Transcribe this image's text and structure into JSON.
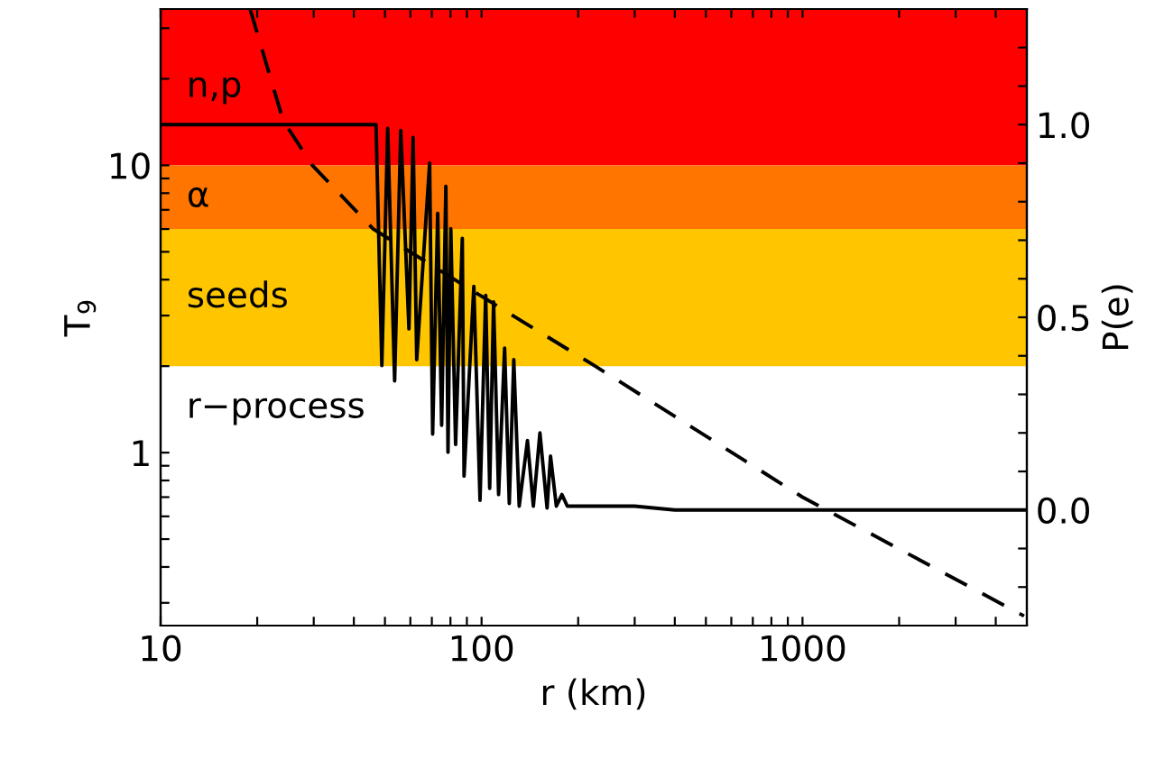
{
  "chart_data": {
    "type": "line",
    "xlabel": "r (km)",
    "ylabel": "T$_{9}$",
    "y2label": "P(e)",
    "log": "xy",
    "xlim": [
      10,
      5000
    ],
    "xticks": [
      10,
      {
        "value": 20,
        "label": null
      },
      {
        "value": 30,
        "label": null
      },
      {
        "value": 40,
        "label": null
      },
      {
        "value": 50,
        "label": null
      },
      {
        "value": 60,
        "label": null
      },
      {
        "value": 70,
        "label": null
      },
      {
        "value": 80,
        "label": null
      },
      {
        "value": 90,
        "label": null
      },
      100,
      {
        "value": 200,
        "label": null
      },
      {
        "value": 300,
        "label": null
      },
      {
        "value": 400,
        "label": null
      },
      {
        "value": 500,
        "label": null
      },
      {
        "value": 600,
        "label": null
      },
      {
        "value": 700,
        "label": null
      },
      {
        "value": 800,
        "label": null
      },
      {
        "value": 900,
        "label": null
      },
      1000,
      {
        "value": 2000,
        "label": null
      },
      {
        "value": 3000,
        "label": null
      },
      {
        "value": 4000,
        "label": null
      }
    ],
    "ylim": [
      0.25,
      35
    ],
    "yticks": [
      {
        "value": 0.3,
        "label": null
      },
      {
        "value": 0.4,
        "label": null
      },
      {
        "value": 0.5,
        "label": null
      },
      {
        "value": 0.6,
        "label": null
      },
      {
        "value": 0.7,
        "label": null
      },
      {
        "value": 0.8,
        "label": null
      },
      {
        "value": 0.9,
        "label": null
      },
      1,
      {
        "value": 2,
        "label": null
      },
      {
        "value": 3,
        "label": null
      },
      {
        "value": 4,
        "label": null
      },
      {
        "value": 5,
        "label": null
      },
      {
        "value": 6,
        "label": null
      },
      {
        "value": 7,
        "label": null
      },
      {
        "value": 8,
        "label": null
      },
      {
        "value": 9,
        "label": null
      },
      10,
      {
        "value": 20,
        "label": null
      },
      {
        "value": 30,
        "label": null
      }
    ],
    "y2lim": [
      -0.3,
      1.3
    ],
    "y2ticks": [
      {
        "value": -0.2,
        "label": null
      },
      {
        "value": -0.1,
        "label": null
      },
      {
        "value": 0.0,
        "label": "0.0"
      },
      {
        "value": 0.1,
        "label": null
      },
      {
        "value": 0.2,
        "label": null
      },
      {
        "value": 0.3,
        "label": null
      },
      {
        "value": 0.4,
        "label": null
      },
      {
        "value": 0.5,
        "label": "0.5"
      },
      {
        "value": 0.6,
        "label": null
      },
      {
        "value": 0.7,
        "label": null
      },
      {
        "value": 0.8,
        "label": null
      },
      {
        "value": 0.9,
        "label": null
      },
      {
        "value": 1.0,
        "label": "1.0"
      },
      {
        "value": 1.1,
        "label": null
      },
      {
        "value": 1.2,
        "label": null
      }
    ],
    "grid": false,
    "legend": false,
    "bands": [
      {
        "axis": "y",
        "from": 10,
        "to": 35,
        "label": "n,p",
        "color": "#ff0000"
      },
      {
        "axis": "y",
        "from": 6,
        "to": 10,
        "label": "α",
        "color": "#ff7500"
      },
      {
        "axis": "y",
        "from": 2,
        "to": 6,
        "label": "seeds",
        "color": "#ffc600"
      }
    ],
    "annotations": [
      "r−process"
    ],
    "series": [
      {
        "color": "#000000",
        "line_style": "dashed",
        "x": [
          19,
          24.1,
          29.7,
          46,
          100,
          226,
          1000,
          4900
        ],
        "values": [
          35,
          14.3,
          10,
          6,
          3.5,
          2,
          0.7,
          0.27
        ]
      },
      {
        "color": "#000000",
        "line_style": "solid",
        "axis": "y2",
        "x": [
          10,
          46.9,
          48.9,
          51,
          53.6,
          56,
          59.4,
          61.2,
          62.8,
          68.9,
          70.4,
          73,
          75.1,
          77.4,
          78.6,
          80.2,
          83,
          87.1,
          88.2,
          94.6,
          98.9,
          103,
          106,
          109,
          113,
          118,
          122,
          126,
          131,
          139,
          145,
          152,
          160,
          164,
          171,
          178,
          185,
          200,
          300,
          400,
          5000
        ],
        "values": [
          1.0,
          1.0,
          0.375,
          0.99,
          0.335,
          0.985,
          0.47,
          0.967,
          0.39,
          0.9,
          0.197,
          0.77,
          0.22,
          0.84,
          0.15,
          0.73,
          0.17,
          0.705,
          0.088,
          0.58,
          0.025,
          0.557,
          0.056,
          0.54,
          0.04,
          0.42,
          0.017,
          0.39,
          0.01,
          0.18,
          0.01,
          0.2,
          0.005,
          0.14,
          0.01,
          0.04,
          0.01,
          0.01,
          0.01,
          0.0,
          0.0
        ]
      }
    ]
  }
}
